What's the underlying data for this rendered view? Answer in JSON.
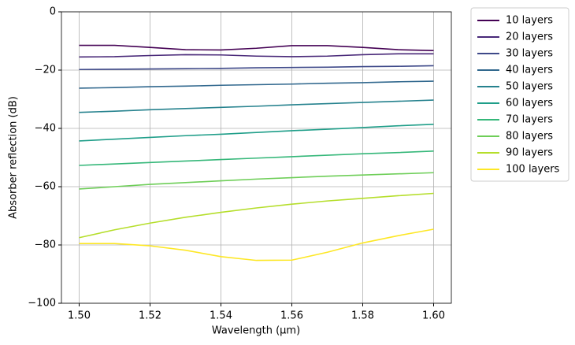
{
  "chart_data": {
    "type": "line",
    "x_label": "Wavelength (µm)",
    "y_label": "Absorber reflection (dB)",
    "x": [
      1.5,
      1.51,
      1.52,
      1.53,
      1.54,
      1.55,
      1.56,
      1.57,
      1.58,
      1.59,
      1.6
    ],
    "xlim": [
      1.495,
      1.605
    ],
    "ylim": [
      -100,
      0
    ],
    "xticks": [
      {
        "value": 1.5,
        "label": "1.50"
      },
      {
        "value": 1.52,
        "label": "1.52"
      },
      {
        "value": 1.54,
        "label": "1.54"
      },
      {
        "value": 1.56,
        "label": "1.56"
      },
      {
        "value": 1.58,
        "label": "1.58"
      },
      {
        "value": 1.6,
        "label": "1.60"
      }
    ],
    "yticks": [
      {
        "value": -100,
        "label": "−100"
      },
      {
        "value": -80,
        "label": "−80"
      },
      {
        "value": -60,
        "label": "−60"
      },
      {
        "value": -40,
        "label": "−40"
      },
      {
        "value": -20,
        "label": "−20"
      },
      0
    ],
    "grid": true,
    "legend": "outside upper right",
    "series": [
      {
        "name": "10 layers",
        "color": "#440154",
        "values": [
          -11.5,
          -11.5,
          -12.2,
          -13.0,
          -13.1,
          -12.5,
          -11.6,
          -11.6,
          -12.2,
          -13.0,
          -13.3
        ]
      },
      {
        "name": "20 layers",
        "color": "#482878",
        "values": [
          -15.5,
          -15.4,
          -15.0,
          -14.7,
          -14.8,
          -15.2,
          -15.4,
          -15.2,
          -14.7,
          -14.4,
          -14.4
        ]
      },
      {
        "name": "30 layers",
        "color": "#3e4989",
        "values": [
          -19.8,
          -19.7,
          -19.6,
          -19.5,
          -19.4,
          -19.2,
          -19.1,
          -19.0,
          -18.8,
          -18.7,
          -18.5
        ]
      },
      {
        "name": "40 layers",
        "color": "#31688e",
        "values": [
          -26.2,
          -26.0,
          -25.7,
          -25.5,
          -25.2,
          -25.0,
          -24.8,
          -24.5,
          -24.3,
          -24.0,
          -23.8
        ]
      },
      {
        "name": "50 layers",
        "color": "#26828e",
        "values": [
          -34.5,
          -34.1,
          -33.6,
          -33.2,
          -32.8,
          -32.4,
          -31.9,
          -31.5,
          -31.1,
          -30.7,
          -30.3
        ]
      },
      {
        "name": "60 layers",
        "color": "#1f9e89",
        "values": [
          -44.3,
          -43.7,
          -43.1,
          -42.5,
          -42.0,
          -41.4,
          -40.8,
          -40.3,
          -39.7,
          -39.1,
          -38.6
        ]
      },
      {
        "name": "70 layers",
        "color": "#35b779",
        "values": [
          -52.7,
          -52.2,
          -51.7,
          -51.2,
          -50.7,
          -50.2,
          -49.7,
          -49.2,
          -48.7,
          -48.3,
          -47.8
        ]
      },
      {
        "name": "80 layers",
        "color": "#6ece58",
        "values": [
          -60.8,
          -60.0,
          -59.2,
          -58.6,
          -58.0,
          -57.4,
          -56.9,
          -56.4,
          -56.0,
          -55.6,
          -55.2
        ]
      },
      {
        "name": "90 layers",
        "color": "#b5de2b",
        "values": [
          -77.5,
          -74.8,
          -72.5,
          -70.5,
          -68.8,
          -67.3,
          -66.0,
          -64.9,
          -64.0,
          -63.1,
          -62.3
        ]
      },
      {
        "name": "100 layers",
        "color": "#fde725",
        "values": [
          -79.5,
          -79.5,
          -80.3,
          -81.8,
          -84.0,
          -85.3,
          -85.2,
          -82.5,
          -79.3,
          -76.8,
          -74.6
        ]
      }
    ]
  }
}
